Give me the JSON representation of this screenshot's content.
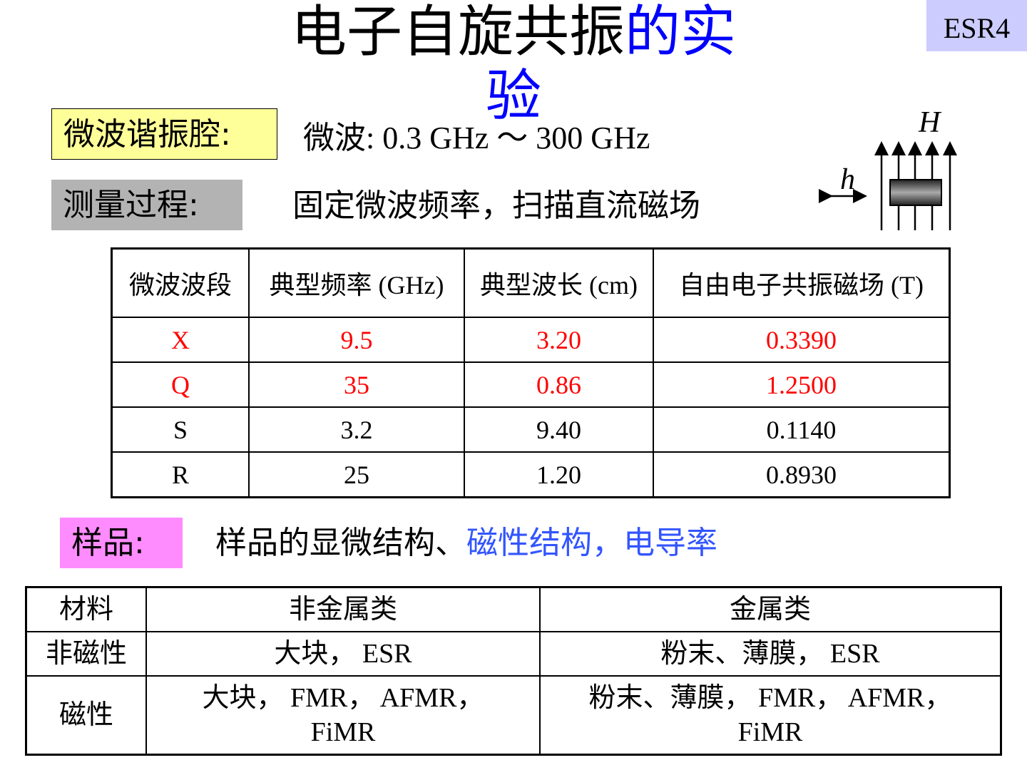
{
  "title": {
    "black": "电子自旋共振",
    "blue": "的实验"
  },
  "badge": "ESR4",
  "cavity": {
    "label": "微波谐振腔:",
    "text": "微波:  0.3 GHz  ～  300 GHz",
    "color": "#ffff99"
  },
  "measure": {
    "label": "测量过程:",
    "text": "固定微波频率，扫描直流磁场",
    "color": "#b3b3b3"
  },
  "diagram": {
    "H": "H",
    "h": "h"
  },
  "band_table": {
    "headers": [
      "微波波段",
      "典型频率 (GHz)",
      "典型波长 (cm)",
      "自由电子共振磁场 (T)"
    ],
    "rows": [
      {
        "cells": [
          "X",
          "9.5",
          "3.20",
          "0.3390"
        ],
        "highlight": true
      },
      {
        "cells": [
          "Q",
          "35",
          "0.86",
          "1.2500"
        ],
        "highlight": true
      },
      {
        "cells": [
          "S",
          "3.2",
          "9.40",
          "0.1140"
        ],
        "highlight": false
      },
      {
        "cells": [
          "R",
          "25",
          "1.20",
          "0.8930"
        ],
        "highlight": false
      }
    ]
  },
  "sample": {
    "label": "样品:",
    "text_black": "样品的显微结构、",
    "text_blue": "磁性结构，电导率",
    "color": "#ff8cff"
  },
  "material_table": {
    "headers": [
      "材料",
      "非金属类",
      "金属类"
    ],
    "rows": [
      [
        "非磁性",
        "大块， ESR",
        "粉末、薄膜， ESR"
      ],
      [
        "磁性",
        "大块， FMR， AFMR， FiMR",
        "粉末、薄膜， FMR， AFMR， FiMR"
      ]
    ]
  }
}
